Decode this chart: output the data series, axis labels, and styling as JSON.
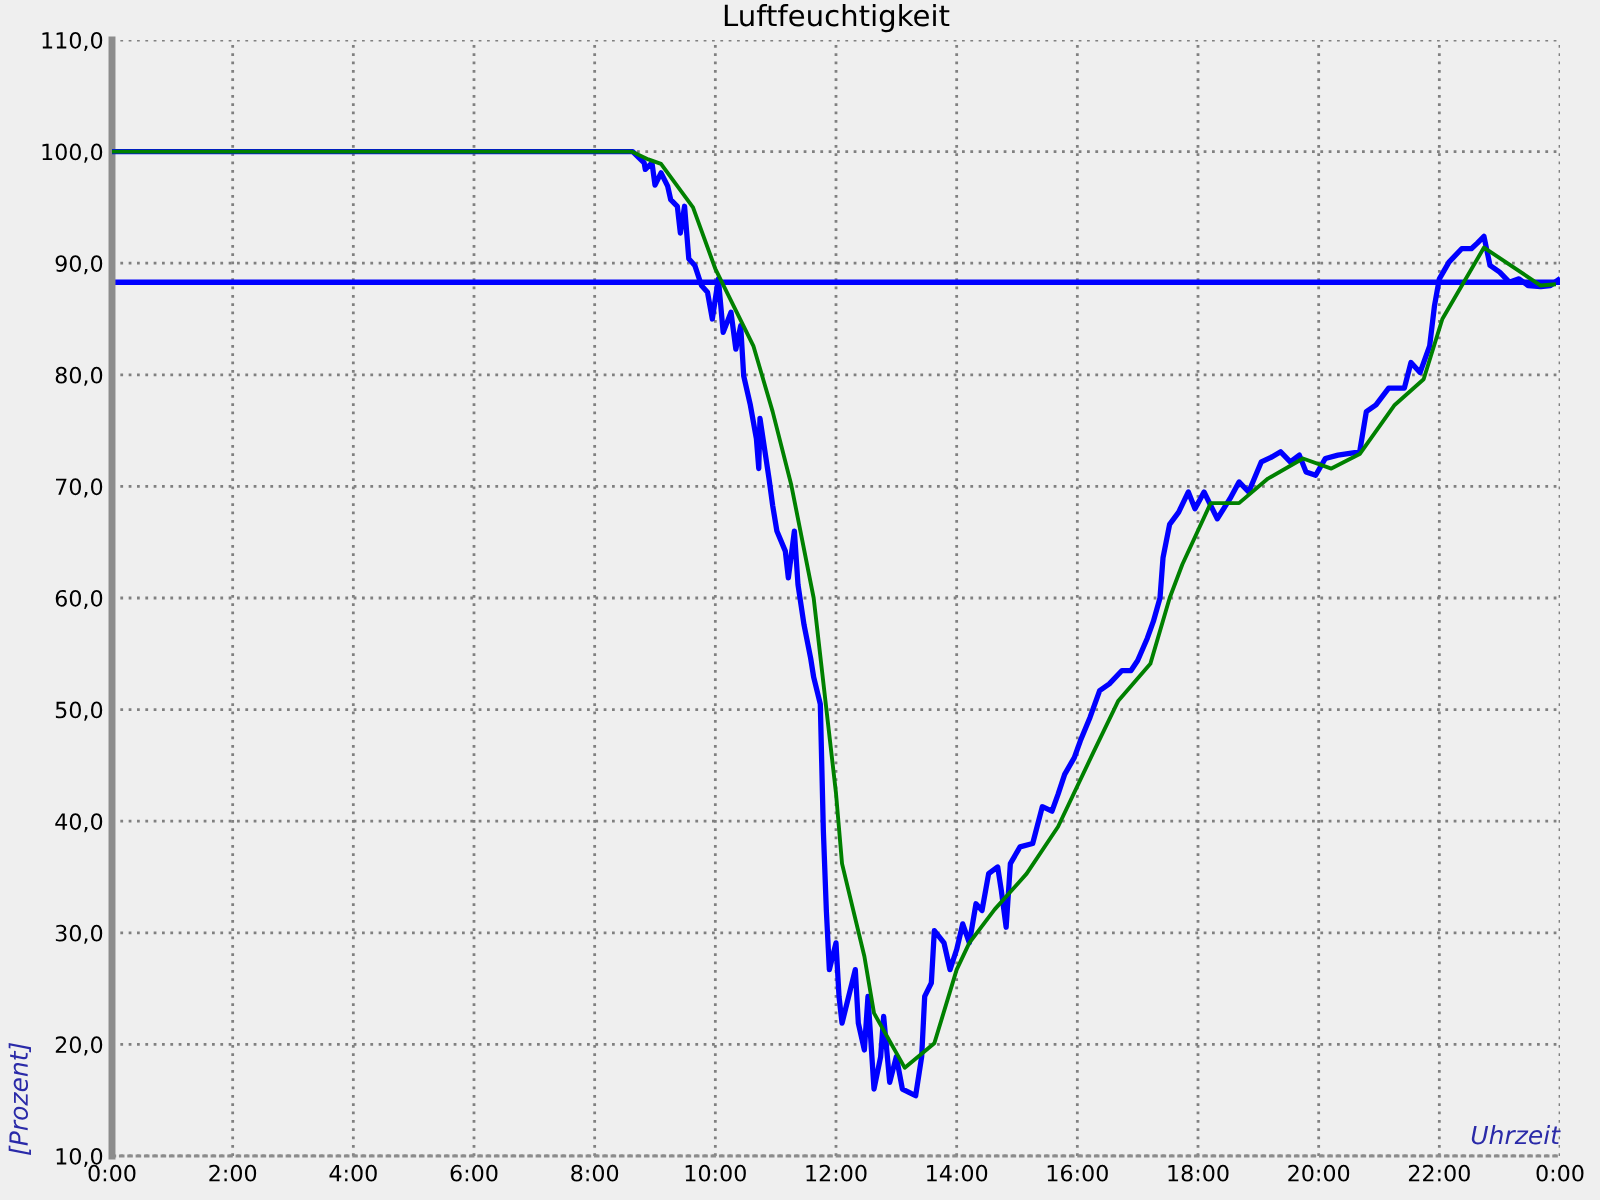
{
  "chart_data": {
    "type": "line",
    "title": "Luftfeuchtigkeit",
    "xlabel": "Uhrzeit",
    "ylabel": "[Prozent]",
    "xlim": [
      0,
      24
    ],
    "xticks": [
      {
        "value": 0,
        "label": "0:00"
      },
      {
        "value": 2,
        "label": "2:00"
      },
      {
        "value": 4,
        "label": "4:00"
      },
      {
        "value": 6,
        "label": "6:00"
      },
      {
        "value": 8,
        "label": "8:00"
      },
      {
        "value": 10,
        "label": "10:00"
      },
      {
        "value": 12,
        "label": "12:00"
      },
      {
        "value": 14,
        "label": "14:00"
      },
      {
        "value": 16,
        "label": "16:00"
      },
      {
        "value": 18,
        "label": "18:00"
      },
      {
        "value": 20,
        "label": "20:00"
      },
      {
        "value": 22,
        "label": "22:00"
      },
      {
        "value": 24,
        "label": "0:00"
      }
    ],
    "ylim": [
      10,
      110
    ],
    "yticks": [
      {
        "value": 10,
        "label": "10,0"
      },
      {
        "value": 20,
        "label": "20,0"
      },
      {
        "value": 30,
        "label": "30,0"
      },
      {
        "value": 40,
        "label": "40,0"
      },
      {
        "value": 50,
        "label": "50,0"
      },
      {
        "value": 60,
        "label": "60,0"
      },
      {
        "value": 70,
        "label": "70,0"
      },
      {
        "value": 80,
        "label": "80,0"
      },
      {
        "value": 90,
        "label": "90,0"
      },
      {
        "value": 100,
        "label": "100,0"
      },
      {
        "value": 110,
        "label": "110,0"
      }
    ],
    "grid": true,
    "line_style": "solid",
    "ref_lines": [
      {
        "axis": "y",
        "value": 88.3,
        "color": "#0000ff"
      }
    ],
    "series": [
      {
        "color": "#0000ff",
        "x": [
          0,
          8.63,
          8.82,
          8.84,
          8.95,
          9.0,
          9.1,
          9.21,
          9.26,
          9.37,
          9.42,
          9.49,
          9.56,
          9.66,
          9.77,
          9.87,
          9.95,
          10.05,
          10.13,
          10.26,
          10.34,
          10.42,
          10.47,
          10.58,
          10.68,
          10.72,
          10.74,
          10.89,
          10.95,
          11.02,
          11.16,
          11.21,
          11.31,
          11.37,
          11.47,
          11.58,
          11.63,
          11.74,
          11.79,
          11.84,
          11.89,
          12.0,
          12.05,
          12.1,
          12.21,
          12.32,
          12.37,
          12.47,
          12.53,
          12.63,
          12.74,
          12.79,
          12.89,
          13.0,
          13.1,
          13.21,
          13.32,
          13.42,
          13.47,
          13.58,
          13.63,
          13.79,
          13.89,
          14.0,
          14.1,
          14.21,
          14.32,
          14.42,
          14.53,
          14.68,
          14.74,
          14.82,
          14.89,
          15.05,
          15.26,
          15.42,
          15.58,
          15.68,
          15.79,
          15.95,
          16.05,
          16.21,
          16.37,
          16.53,
          16.74,
          16.89,
          17.0,
          17.16,
          17.26,
          17.37,
          17.42,
          17.53,
          17.68,
          17.84,
          17.95,
          18.1,
          18.32,
          18.53,
          18.68,
          18.84,
          19.05,
          19.21,
          19.37,
          19.53,
          19.68,
          19.79,
          19.95,
          20.11,
          20.32,
          20.68,
          20.79,
          20.95,
          21.16,
          21.42,
          21.53,
          21.68,
          21.84,
          21.92,
          22.0,
          22.16,
          22.37,
          22.53,
          22.63,
          22.74,
          22.84,
          23.0,
          23.16,
          23.32,
          23.47,
          23.68,
          23.84,
          23.97
        ],
        "values": [
          100.0,
          100.0,
          99.0,
          98.4,
          99.0,
          97.0,
          98.1,
          96.9,
          95.7,
          95.1,
          92.7,
          95.1,
          90.4,
          89.8,
          88.0,
          87.4,
          85.0,
          88.6,
          83.8,
          85.6,
          82.3,
          84.4,
          79.9,
          77.3,
          74.3,
          71.6,
          76.1,
          70.7,
          68.3,
          66.0,
          64.2,
          61.8,
          66.0,
          61.2,
          57.6,
          54.6,
          52.9,
          50.5,
          39.2,
          32.0,
          26.7,
          29.1,
          24.3,
          21.9,
          24.3,
          26.7,
          21.9,
          19.5,
          24.3,
          16.0,
          18.9,
          22.5,
          16.6,
          18.9,
          16.0,
          15.7,
          15.4,
          18.9,
          24.3,
          25.5,
          30.2,
          29.1,
          26.7,
          28.5,
          30.8,
          29.1,
          32.6,
          32.0,
          35.3,
          35.9,
          33.8,
          30.5,
          36.2,
          37.7,
          38.0,
          41.3,
          40.9,
          42.4,
          44.2,
          45.7,
          47.2,
          49.3,
          51.7,
          52.3,
          53.5,
          53.5,
          54.4,
          56.4,
          57.9,
          60.0,
          63.6,
          66.6,
          67.7,
          69.5,
          68.0,
          69.5,
          67.1,
          68.9,
          70.4,
          69.5,
          72.2,
          72.6,
          73.1,
          72.2,
          72.8,
          71.3,
          71.0,
          72.5,
          72.8,
          73.1,
          76.7,
          77.3,
          78.8,
          78.8,
          81.1,
          80.2,
          82.6,
          86.2,
          88.6,
          90.1,
          91.3,
          91.3,
          91.8,
          92.4,
          89.8,
          89.2,
          88.3,
          88.6,
          88.0,
          87.9,
          88.0,
          88.5
        ]
      },
      {
        "color": "#008000",
        "x": [
          0,
          8.61,
          8.89,
          9.1,
          9.63,
          10.0,
          10.63,
          10.95,
          11.26,
          11.63,
          12.0,
          12.1,
          12.47,
          12.63,
          13.14,
          13.63,
          14.0,
          14.21,
          14.63,
          15.16,
          15.68,
          16.26,
          16.68,
          17.21,
          17.53,
          17.74,
          18.21,
          18.68,
          19.16,
          19.74,
          20.21,
          20.68,
          21.26,
          21.74,
          22.05,
          22.74,
          23.68,
          23.9
        ],
        "values": [
          100.0,
          100.0,
          99.3,
          98.9,
          95.0,
          89.5,
          82.6,
          76.7,
          70.1,
          60.0,
          42.5,
          36.2,
          27.9,
          22.8,
          17.9,
          20.1,
          26.7,
          29.1,
          32.1,
          35.3,
          39.5,
          46.1,
          50.8,
          54.1,
          60.0,
          63.0,
          68.5,
          68.5,
          70.7,
          72.5,
          71.6,
          72.9,
          77.3,
          79.6,
          85.0,
          91.4,
          88.0,
          88.1
        ]
      }
    ]
  }
}
